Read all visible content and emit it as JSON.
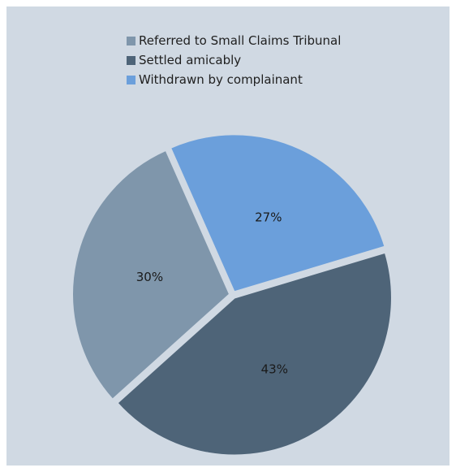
{
  "chart_data": {
    "type": "pie",
    "categories": [
      "Referred to Small Claims Tribunal",
      "Settled amicably",
      "Withdrawn by complainant"
    ],
    "values": [
      30,
      43,
      27
    ],
    "value_labels": [
      "30%",
      "43%",
      "27%"
    ],
    "colors": [
      "#7f96ab",
      "#4e6478",
      "#6b9fdb"
    ],
    "legend_position": "top",
    "background_color": "#d0d9e3"
  }
}
